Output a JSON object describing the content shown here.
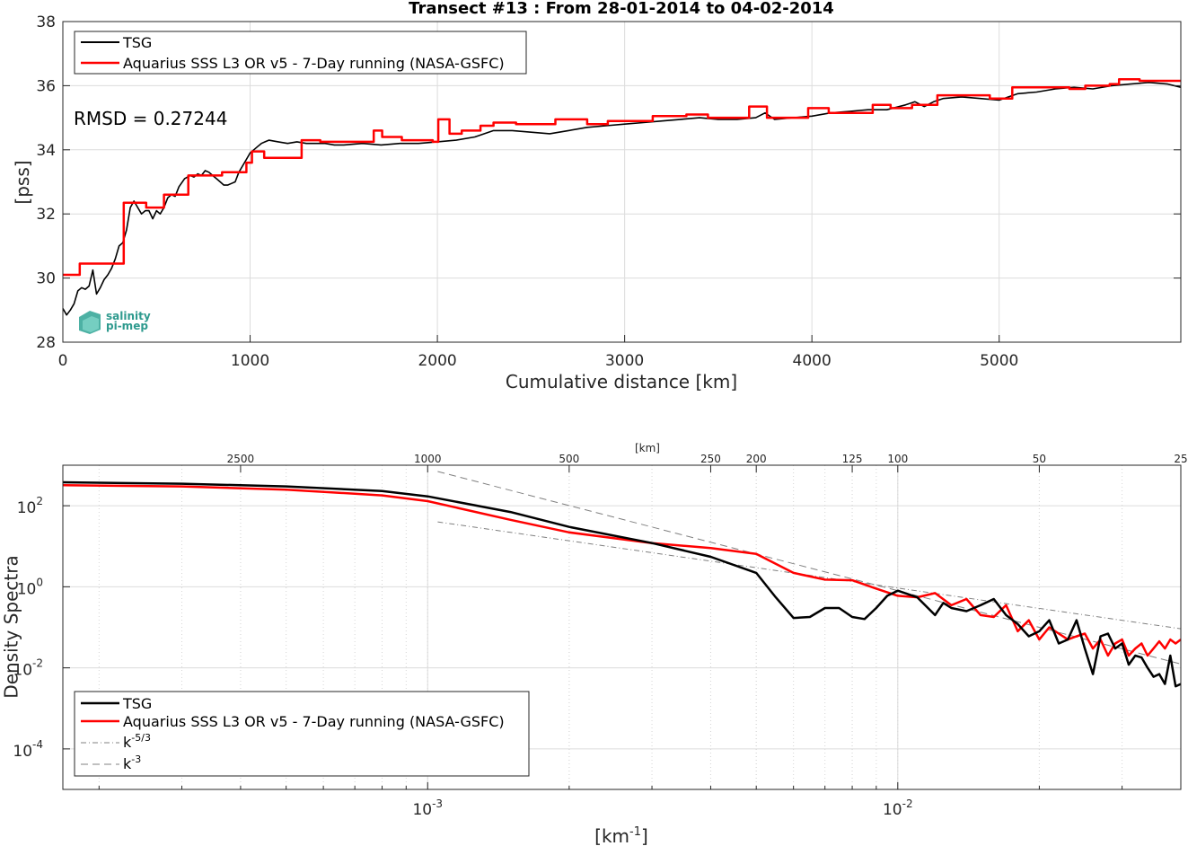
{
  "chart_data": [
    {
      "type": "line",
      "title": "Transect #13 : From 28-01-2014 to 04-02-2014",
      "xlabel": "Cumulative distance [km]",
      "ylabel": "[pss]",
      "xlim": [
        0,
        5970
      ],
      "ylim": [
        28,
        38
      ],
      "xticks": [
        0,
        1000,
        2000,
        3000,
        4000,
        5000
      ],
      "yticks": [
        28,
        30,
        32,
        34,
        36,
        38
      ],
      "grid": true,
      "legend_position": "top-left",
      "annotation": "RMSD = 0.27244",
      "logo": "salinity pi-mep",
      "series": [
        {
          "name": "TSG",
          "color": "#000000",
          "x": [
            0,
            20,
            40,
            60,
            80,
            100,
            120,
            140,
            160,
            180,
            200,
            220,
            240,
            260,
            280,
            300,
            320,
            340,
            360,
            380,
            400,
            420,
            440,
            460,
            480,
            500,
            520,
            540,
            560,
            580,
            600,
            620,
            650,
            680,
            700,
            720,
            740,
            760,
            780,
            800,
            820,
            840,
            860,
            880,
            900,
            920,
            940,
            960,
            980,
            1000,
            1020,
            1040,
            1060,
            1080,
            1100,
            1150,
            1200,
            1250,
            1300,
            1350,
            1400,
            1450,
            1500,
            1600,
            1700,
            1800,
            1900,
            2000,
            2100,
            2200,
            2300,
            2400,
            2500,
            2600,
            2700,
            2800,
            2900,
            3000,
            3100,
            3200,
            3300,
            3400,
            3500,
            3600,
            3700,
            3750,
            3800,
            3900,
            4000,
            4100,
            4200,
            4300,
            4400,
            4500,
            4550,
            4600,
            4650,
            4700,
            4800,
            4900,
            5000,
            5100,
            5200,
            5300,
            5400,
            5500,
            5600,
            5700,
            5800,
            5900,
            5970
          ],
          "y": [
            29.05,
            28.85,
            29.0,
            29.2,
            29.6,
            29.7,
            29.65,
            29.75,
            30.25,
            29.5,
            29.7,
            29.95,
            30.1,
            30.3,
            30.6,
            31.0,
            31.1,
            31.5,
            32.2,
            32.4,
            32.2,
            32.0,
            32.1,
            32.1,
            31.85,
            32.1,
            32.0,
            32.2,
            32.5,
            32.6,
            32.55,
            32.85,
            33.1,
            33.2,
            33.15,
            33.25,
            33.2,
            33.35,
            33.3,
            33.2,
            33.1,
            33.0,
            32.9,
            32.9,
            32.95,
            33.0,
            33.3,
            33.5,
            33.7,
            33.9,
            34.0,
            34.1,
            34.2,
            34.25,
            34.3,
            34.25,
            34.2,
            34.25,
            34.2,
            34.2,
            34.2,
            34.15,
            34.15,
            34.2,
            34.15,
            34.2,
            34.2,
            34.25,
            34.3,
            34.4,
            34.6,
            34.6,
            34.55,
            34.5,
            34.6,
            34.7,
            34.75,
            34.8,
            34.85,
            34.9,
            34.95,
            35.0,
            34.95,
            34.95,
            35.0,
            35.15,
            34.95,
            35.0,
            35.05,
            35.15,
            35.2,
            35.25,
            35.25,
            35.4,
            35.5,
            35.35,
            35.5,
            35.6,
            35.65,
            35.6,
            35.55,
            35.75,
            35.8,
            35.9,
            35.95,
            35.9,
            36.0,
            36.05,
            36.1,
            36.05,
            35.95
          ]
        },
        {
          "name": "Aquarius SSS L3 OR v5 - 7-Day running (NASA-GSFC)",
          "color": "#ff0000",
          "x": [
            0,
            90,
            90,
            325,
            325,
            445,
            445,
            540,
            540,
            670,
            670,
            850,
            850,
            980,
            980,
            1010,
            1010,
            1075,
            1075,
            1135,
            1135,
            1275,
            1275,
            1375,
            1375,
            1660,
            1660,
            1705,
            1705,
            1810,
            1810,
            1975,
            1975,
            2005,
            2005,
            2065,
            2065,
            2130,
            2130,
            2230,
            2230,
            2300,
            2300,
            2420,
            2420,
            2630,
            2630,
            2800,
            2800,
            2910,
            2910,
            3150,
            3150,
            3330,
            3330,
            3445,
            3445,
            3665,
            3665,
            3760,
            3760,
            3980,
            3980,
            4090,
            4090,
            4325,
            4325,
            4420,
            4420,
            4535,
            4535,
            4670,
            4670,
            4950,
            4950,
            5070,
            5070,
            5375,
            5375,
            5460,
            5460,
            5590,
            5590,
            5640,
            5640,
            5750,
            5750,
            5970
          ],
          "y": [
            30.1,
            30.1,
            30.45,
            30.45,
            32.35,
            32.35,
            32.2,
            32.2,
            32.6,
            32.6,
            33.2,
            33.2,
            33.3,
            33.3,
            33.6,
            33.6,
            33.95,
            33.95,
            33.75,
            33.75,
            33.75,
            33.75,
            34.3,
            34.3,
            34.25,
            34.25,
            34.6,
            34.6,
            34.4,
            34.4,
            34.3,
            34.3,
            34.25,
            34.25,
            34.95,
            34.95,
            34.5,
            34.5,
            34.6,
            34.6,
            34.75,
            34.75,
            34.85,
            34.85,
            34.8,
            34.8,
            34.95,
            34.95,
            34.8,
            34.8,
            34.9,
            34.9,
            35.05,
            35.05,
            35.1,
            35.1,
            35.0,
            35.0,
            35.35,
            35.35,
            35.0,
            35.0,
            35.3,
            35.3,
            35.15,
            35.15,
            35.4,
            35.4,
            35.3,
            35.3,
            35.4,
            35.4,
            35.7,
            35.7,
            35.6,
            35.6,
            35.95,
            35.95,
            35.9,
            35.9,
            36.0,
            36.0,
            36.05,
            36.05,
            36.2,
            36.2,
            36.15,
            36.15
          ]
        }
      ]
    },
    {
      "type": "line",
      "title": "",
      "xlabel": "[km-1]",
      "ylabel": "Density Spectra",
      "top_axis_label": "[km]",
      "xscale": "log",
      "yscale": "log",
      "xlim": [
        0.0001675,
        0.04
      ],
      "ylim": [
        1e-05,
        1000
      ],
      "x_tick_labels": [
        "10-3",
        "10-2"
      ],
      "y_tick_labels": [
        "10-4",
        "10-2",
        "100",
        "102"
      ],
      "top_ticks_km": [
        2500,
        1000,
        500,
        250,
        200,
        125,
        100,
        50,
        25
      ],
      "grid": true,
      "legend_position": "bottom-left",
      "series": [
        {
          "name": "TSG",
          "color": "#000000",
          "x": [
            0.0001675,
            0.0003,
            0.0005,
            0.0008,
            0.001,
            0.0015,
            0.002,
            0.003,
            0.004,
            0.005,
            0.0055,
            0.006,
            0.0065,
            0.007,
            0.0075,
            0.008,
            0.0085,
            0.009,
            0.0095,
            0.01,
            0.011,
            0.012,
            0.0125,
            0.013,
            0.014,
            0.015,
            0.016,
            0.017,
            0.018,
            0.019,
            0.02,
            0.021,
            0.022,
            0.023,
            0.024,
            0.025,
            0.026,
            0.027,
            0.028,
            0.029,
            0.03,
            0.031,
            0.032,
            0.033,
            0.034,
            0.035,
            0.036,
            0.037,
            0.038,
            0.039,
            0.04
          ],
          "y": [
            380,
            350,
            300,
            230,
            170,
            70,
            30,
            12,
            5.5,
            2.2,
            0.55,
            0.17,
            0.18,
            0.3,
            0.3,
            0.18,
            0.16,
            0.3,
            0.6,
            0.8,
            0.55,
            0.2,
            0.4,
            0.3,
            0.25,
            0.35,
            0.5,
            0.2,
            0.12,
            0.06,
            0.08,
            0.15,
            0.04,
            0.05,
            0.15,
            0.03,
            0.007,
            0.06,
            0.07,
            0.03,
            0.04,
            0.012,
            0.02,
            0.018,
            0.01,
            0.006,
            0.007,
            0.004,
            0.02,
            0.0035,
            0.004
          ]
        },
        {
          "name": "Aquarius SSS L3 OR v5 - 7-Day running (NASA-GSFC)",
          "color": "#ff0000",
          "x": [
            0.0001675,
            0.0003,
            0.0005,
            0.0008,
            0.001,
            0.0015,
            0.002,
            0.003,
            0.004,
            0.005,
            0.006,
            0.007,
            0.008,
            0.009,
            0.01,
            0.011,
            0.012,
            0.013,
            0.014,
            0.015,
            0.016,
            0.017,
            0.018,
            0.019,
            0.02,
            0.021,
            0.022,
            0.023,
            0.024,
            0.025,
            0.026,
            0.027,
            0.028,
            0.029,
            0.03,
            0.031,
            0.032,
            0.033,
            0.034,
            0.035,
            0.036,
            0.037,
            0.038,
            0.039,
            0.04
          ],
          "y": [
            320,
            300,
            250,
            180,
            130,
            45,
            22,
            12,
            9,
            6.5,
            2.2,
            1.5,
            1.45,
            0.9,
            0.6,
            0.55,
            0.7,
            0.35,
            0.5,
            0.2,
            0.18,
            0.35,
            0.08,
            0.15,
            0.05,
            0.1,
            0.07,
            0.05,
            0.06,
            0.07,
            0.03,
            0.05,
            0.02,
            0.04,
            0.05,
            0.02,
            0.03,
            0.04,
            0.02,
            0.03,
            0.045,
            0.03,
            0.05,
            0.04,
            0.05
          ]
        },
        {
          "name": "k-5/3",
          "color": "#808080",
          "dash": "dash-dot",
          "x": [
            0.00105,
            0.04
          ],
          "y": [
            40,
            0.092
          ]
        },
        {
          "name": "k-3",
          "color": "#808080",
          "dash": "dashed",
          "x": [
            0.00105,
            0.04
          ],
          "y": [
            700,
            0.0124
          ]
        }
      ]
    }
  ]
}
